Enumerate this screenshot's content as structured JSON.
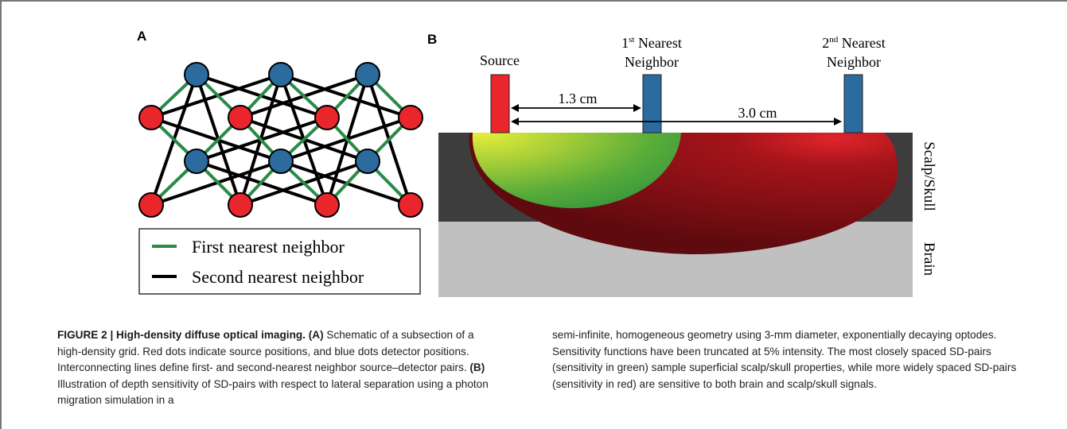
{
  "panel_a": {
    "label": "A",
    "legend": {
      "first": "First nearest neighbor",
      "second": "Second nearest neighbor"
    },
    "colors": {
      "source": "#e8262c",
      "detector": "#2b6b9e",
      "first_line": "#2a8a47",
      "second_line": "#000000"
    }
  },
  "panel_b": {
    "label": "B",
    "source_label": "Source",
    "nn1": {
      "ordinal": "1",
      "sup": "st",
      "line1": "Nearest",
      "line2": "Neighbor"
    },
    "nn2": {
      "ordinal": "2",
      "sup": "nd",
      "line1": "Nearest",
      "line2": "Neighbor"
    },
    "dist1": "1.3 cm",
    "dist2": "3.0 cm",
    "layer_scalp": "Scalp/Skull",
    "layer_brain": "Brain",
    "colors": {
      "scalp": "#3d3d3d",
      "brain": "#c0c0c0",
      "red_banana": "#8a0f14",
      "green_banana": "#4cae3a"
    }
  },
  "caption": {
    "title": "FIGURE 2 | High-density diffuse optical imaging.",
    "a_tag": "(A)",
    "a_text": " Schematic of a subsection of a high-density grid. Red dots indicate source positions, and blue dots detector positions. Interconnecting lines define first- and second-nearest neighbor source–detector pairs. ",
    "b_tag": "(B)",
    "b_text1": " Illustration of depth sensitivity of SD-pairs with respect to lateral separation using a photon migration simulation in a",
    "b_text2": "semi-infinite, homogeneous geometry using 3-mm diameter, exponentially decaying optodes. Sensitivity functions have been truncated at 5% intensity. The most closely spaced SD-pairs (sensitivity in green) sample superficial scalp/skull properties, while more widely spaced SD-pairs (sensitivity in red) are sensitive to both brain and scalp/skull signals."
  }
}
